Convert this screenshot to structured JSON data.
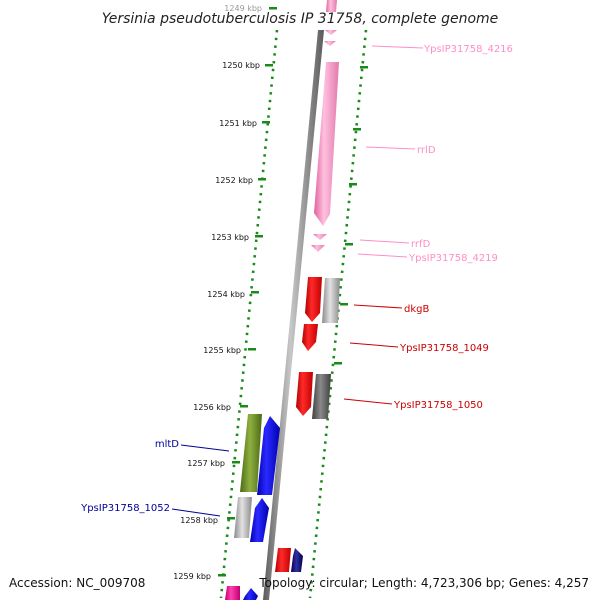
{
  "title": "Yersinia pseudotuberculosis IP 31758, complete genome",
  "footer": {
    "accession": "Accession: NC_009708",
    "topology": "Topology: circular; Length: 4,723,306 bp; Genes: 4,257"
  },
  "ticks": [
    "1249 kbp",
    "1250 kbp",
    "1251 kbp",
    "1252 kbp",
    "1253 kbp",
    "1254 kbp",
    "1255 kbp",
    "1256 kbp",
    "1257 kbp",
    "1258 kbp",
    "1259 kbp"
  ],
  "gene_labels": [
    {
      "text": "YpsIP31758_4216",
      "color": "#ff8ec6"
    },
    {
      "text": "rrlD",
      "color": "#ff8ec6"
    },
    {
      "text": "rrfD",
      "color": "#ff8ec6"
    },
    {
      "text": "YpsIP31758_4219",
      "color": "#ff8ec6"
    },
    {
      "text": "dkgB",
      "color": "#cc0000"
    },
    {
      "text": "YpsIP31758_1049",
      "color": "#cc0000"
    },
    {
      "text": "YpsIP31758_1050",
      "color": "#cc0000"
    },
    {
      "text": "mltD",
      "color": "#000099"
    },
    {
      "text": "YpsIP31758_1052",
      "color": "#000099"
    }
  ],
  "colors": {
    "tick_dots": "#008000",
    "backbone": "#808080",
    "rna": "#ff8ec6",
    "red_gene": "#ff0000",
    "gray_gene": "#aaaaaa",
    "darkgray_gene": "#666666",
    "olive_gene": "#6b8e23",
    "blue_gene": "#0000ff",
    "navy_gene": "#000080"
  }
}
